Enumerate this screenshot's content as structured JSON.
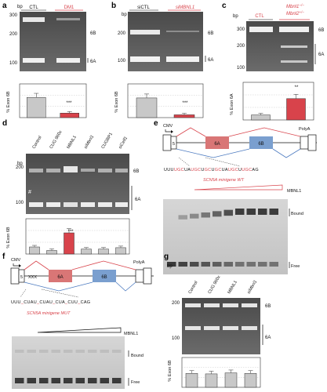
{
  "panels": {
    "a": {
      "label": "a",
      "bp_label": "bp",
      "lanes": [
        "CTL",
        "DM1"
      ],
      "ticks": [
        "300",
        "200",
        "100"
      ],
      "bands": [
        "6B",
        "6A"
      ],
      "ylabel": "% Exon 6B",
      "stars": "***",
      "chart_data": {
        "type": "bar",
        "categories": [
          "CTL",
          "DM1"
        ],
        "values": [
          36,
          8
        ],
        "ylim": [
          0,
          60
        ],
        "colors": [
          "#c8c8c8",
          "#d8434b"
        ]
      }
    },
    "b": {
      "label": "b",
      "bp_label": "bp",
      "lanes": [
        "siCTL",
        "siMBNL1"
      ],
      "ticks": [
        "200",
        "100"
      ],
      "bands": [
        "6B",
        "6A"
      ],
      "ylabel": "% Exon 6B",
      "stars": "***",
      "chart_data": {
        "type": "bar",
        "categories": [
          "siCTL",
          "siMBNL1"
        ],
        "values": [
          35,
          5
        ],
        "ylim": [
          0,
          60
        ],
        "colors": [
          "#c8c8c8",
          "#d8434b"
        ]
      }
    },
    "c": {
      "label": "c",
      "bp_label": "bp",
      "lanes": [
        "CTL",
        "Mbnl1−/− Mbnl2+/−"
      ],
      "lane_ctl": "CTL",
      "lane_mut_1": "Mbnl1",
      "lane_mut_1_sup": "−/−",
      "lane_mut_2": "Mbnl2",
      "lane_mut_2_sup": "+/−",
      "ticks": [
        "300",
        "200",
        "100"
      ],
      "bands": [
        "6B",
        "6A"
      ],
      "ylabel": "% Exon 6A",
      "stars": "**",
      "chart_data": {
        "type": "bar",
        "categories": [
          "CTL",
          "Mbnl1−/− Mbnl2+/−"
        ],
        "values": [
          4,
          17
        ],
        "ylim": [
          0,
          30
        ],
        "colors": [
          "#c8c8c8",
          "#d8434b"
        ]
      }
    },
    "d": {
      "label": "d",
      "bp_label": "bp",
      "lanes": [
        "Control",
        "CUG 960x",
        "MBNL1",
        "siMbnl1",
        "CUGBP1",
        "siCelf1"
      ],
      "ticks": [
        "200",
        "100"
      ],
      "bands": [
        "6B",
        "6A"
      ],
      "hash": "#",
      "ylabel": "% Exon 6B",
      "stars": "***",
      "chart_data": {
        "type": "bar",
        "categories": [
          "Control",
          "CUG 960x",
          "MBNL1",
          "siMbnl1",
          "CUGBP1",
          "siCelf1"
        ],
        "values": [
          10,
          5,
          30,
          7,
          7,
          9
        ],
        "ylim": [
          0,
          50
        ],
        "colors": [
          "#c8c8c8",
          "#c8c8c8",
          "#d8434b",
          "#c8c8c8",
          "#c8c8c8",
          "#c8c8c8"
        ]
      }
    },
    "e": {
      "label": "e",
      "cmv": "CMV",
      "polya": "PolyA",
      "exon5": "5",
      "exon6a": "6A",
      "exon6b": "6B",
      "sequence": "UUUGCUAUGCUGCUGCUAUGCUUGCAG",
      "construct": "SCN5A minigene WT",
      "protein": "MBNL1",
      "bound": "Bound",
      "free": "Free"
    },
    "f": {
      "label": "f",
      "cmv": "CMV",
      "polya": "PolyA",
      "exon5": "5",
      "xxx": "XXX",
      "exon6a": "6A",
      "exon6b": "6B",
      "sequence": "UUU_CUAU_CUAU_CUA_CUU_CAG",
      "construct": "SCN5A minigene MUT",
      "protein": "MBNL1",
      "bound": "Bound",
      "free": "Free"
    },
    "g": {
      "label": "g",
      "bp_label": "bp",
      "lanes": [
        "Control",
        "CUG 960x",
        "MBNL1",
        "siMbnl1"
      ],
      "ticks": [
        "200",
        "100"
      ],
      "bands": [
        "6B",
        "6A"
      ],
      "ylabel": "% Exon 6B",
      "chart_data": {
        "type": "bar",
        "categories": [
          "Control",
          "CUG 960x",
          "MBNL1",
          "siMbnl1"
        ],
        "values": [
          28,
          27,
          29,
          28
        ],
        "ylim": [
          0,
          60
        ],
        "colors": [
          "#c8c8c8",
          "#c8c8c8",
          "#c8c8c8",
          "#c8c8c8"
        ]
      }
    }
  }
}
